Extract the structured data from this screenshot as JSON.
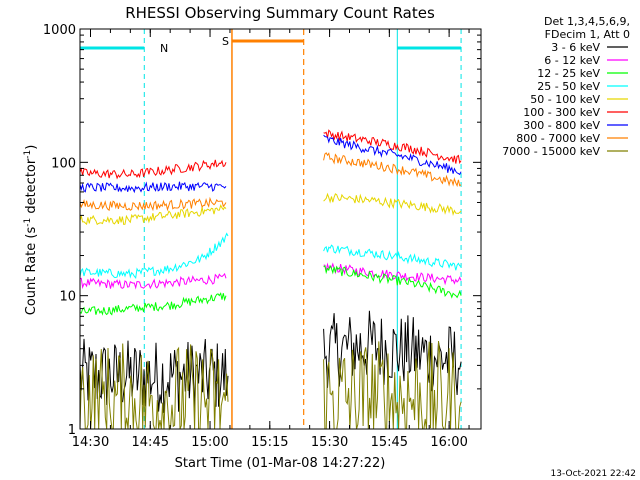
{
  "chart_data": {
    "type": "line",
    "title": "RHESSI Observing Summary Count Rates",
    "xlabel": "Start Time (01-Mar-08 14:27:22)",
    "ylabel_main": "Count Rate (s",
    "ylabel_sup1": "-1",
    "ylabel_mid": " detector",
    "ylabel_sup2": "-1",
    "ylabel_end": ")",
    "yscale": "log",
    "ylim": [
      1,
      1000
    ],
    "xlim": [
      "14:27:22",
      "16:08:00"
    ],
    "x_ticks": [
      "14:30",
      "14:45",
      "15:00",
      "15:15",
      "15:30",
      "15:45",
      "16:00"
    ],
    "y_ticks": [
      "1",
      "10",
      "100",
      "1000"
    ],
    "legend_header": [
      "Det 1,3,4,5,6,9,",
      "FDecim 1, Att 0"
    ],
    "legend_position": "top-right",
    "timestamp": "13-Oct-2021 22:42",
    "series": [
      {
        "name": "3 - 6 keV",
        "color": "#000000",
        "segments": [
          [
            [
              "14:27:22",
              2.5
            ],
            [
              "15:04:30",
              2.5
            ]
          ],
          [
            [
              "15:28:30",
              3.8
            ],
            [
              "15:40:00",
              4.2
            ],
            [
              "15:50:00",
              3.8
            ],
            [
              "16:03:00",
              3.2
            ]
          ]
        ]
      },
      {
        "name": "6 - 12 keV",
        "color": "#ff00ff",
        "segments": [
          [
            [
              "14:27:22",
              12.5
            ],
            [
              "14:40:00",
              12
            ],
            [
              "14:50:00",
              12.5
            ],
            [
              "15:04:00",
              13.5
            ]
          ],
          [
            [
              "15:28:30",
              16.5
            ],
            [
              "15:40:00",
              15
            ],
            [
              "15:50:00",
              14
            ],
            [
              "16:03:00",
              13
            ]
          ]
        ]
      },
      {
        "name": "12 - 25 keV",
        "color": "#00ff00",
        "segments": [
          [
            [
              "14:27:22",
              7.5
            ],
            [
              "14:40:00",
              8
            ],
            [
              "14:50:00",
              8.5
            ],
            [
              "15:04:00",
              10
            ]
          ],
          [
            [
              "15:28:30",
              16
            ],
            [
              "15:40:00",
              14
            ],
            [
              "15:50:00",
              12.5
            ],
            [
              "16:03:00",
              10
            ]
          ]
        ]
      },
      {
        "name": "25 - 50 keV",
        "color": "#00ffff",
        "segments": [
          [
            [
              "14:27:22",
              15
            ],
            [
              "14:40:00",
              14.5
            ],
            [
              "14:50:00",
              16
            ],
            [
              "14:58:00",
              19
            ],
            [
              "15:04:30",
              28
            ]
          ],
          [
            [
              "15:28:30",
              23
            ],
            [
              "15:40:00",
              21
            ],
            [
              "15:50:00",
              19
            ],
            [
              "16:03:00",
              16.5
            ]
          ]
        ]
      },
      {
        "name": "50 - 100 keV",
        "color": "#e6d600",
        "segments": [
          [
            [
              "14:27:22",
              37
            ],
            [
              "14:40:00",
              37
            ],
            [
              "14:50:00",
              40
            ],
            [
              "15:04:00",
              45
            ]
          ],
          [
            [
              "15:28:30",
              55
            ],
            [
              "15:40:00",
              52
            ],
            [
              "15:50:00",
              48
            ],
            [
              "16:03:00",
              43
            ]
          ]
        ]
      },
      {
        "name": "100 - 300 keV",
        "color": "#ff0000",
        "segments": [
          [
            [
              "14:27:22",
              83
            ],
            [
              "14:40:00",
              81
            ],
            [
              "14:50:00",
              88
            ],
            [
              "15:04:00",
              100
            ]
          ],
          [
            [
              "15:28:30",
              165
            ],
            [
              "15:40:00",
              145
            ],
            [
              "15:50:00",
              128
            ],
            [
              "16:03:00",
              103
            ]
          ]
        ]
      },
      {
        "name": "300 - 800 keV",
        "color": "#0000ff",
        "segments": [
          [
            [
              "14:27:22",
              65
            ],
            [
              "14:40:00",
              64
            ],
            [
              "14:50:00",
              66
            ],
            [
              "15:04:00",
              66
            ]
          ],
          [
            [
              "15:28:30",
              150
            ],
            [
              "15:40:00",
              125
            ],
            [
              "15:50:00",
              108
            ],
            [
              "16:03:00",
              85
            ]
          ]
        ]
      },
      {
        "name": "800 - 7000 keV",
        "color": "#ff8000",
        "segments": [
          [
            [
              "14:27:22",
              48
            ],
            [
              "14:40:00",
              47
            ],
            [
              "14:50:00",
              48
            ],
            [
              "15:04:00",
              50
            ]
          ],
          [
            [
              "15:28:30",
              110
            ],
            [
              "15:40:00",
              97
            ],
            [
              "15:50:00",
              86
            ],
            [
              "16:03:00",
              68
            ]
          ]
        ]
      },
      {
        "name": "7000 - 15000 keV",
        "color": "#808000",
        "segments": [
          [
            [
              "14:27:22",
              1.6
            ],
            [
              "15:04:30",
              1.6
            ]
          ],
          [
            [
              "15:28:30",
              1.7
            ],
            [
              "15:45:00",
              1.7
            ],
            [
              "16:03:00",
              1.6
            ]
          ]
        ]
      }
    ],
    "annotations": {
      "night_label": "N",
      "saa_label": "S",
      "night_bar": [
        [
          "14:27:22",
          "14:43:30"
        ],
        [
          "15:47:00",
          "16:03:00"
        ]
      ],
      "saa_bar": [
        "15:05:30",
        "15:23:30"
      ],
      "cyan_solid_lines": [
        "14:27:22",
        "15:47:00"
      ],
      "cyan_dashed_lines": [
        "14:43:30",
        "16:03:00"
      ],
      "orange_solid_line": "15:05:30",
      "orange_dashed_line": "15:23:30"
    }
  }
}
